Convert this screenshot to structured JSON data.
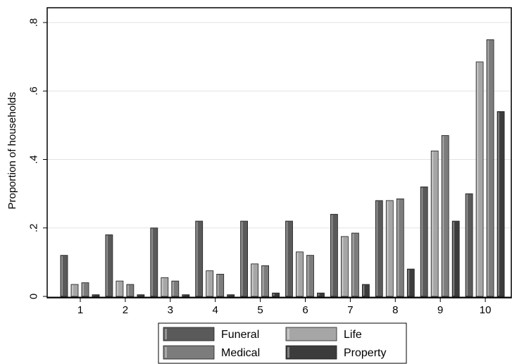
{
  "chart_data": {
    "type": "bar",
    "title": "",
    "xlabel": "",
    "ylabel": "Proportion of households",
    "categories": [
      "1",
      "2",
      "3",
      "4",
      "5",
      "6",
      "7",
      "8",
      "9",
      "10"
    ],
    "ylim": [
      0,
      0.8
    ],
    "yticks": [
      {
        "value": 0,
        "label": "0"
      },
      {
        "value": 0.2,
        "label": ".2"
      },
      {
        "value": 0.4,
        "label": ".4"
      },
      {
        "value": 0.6,
        "label": ".6"
      },
      {
        "value": 0.8,
        "label": ".8"
      }
    ],
    "grid": true,
    "legend_position": "bottom",
    "series": [
      {
        "name": "Funeral",
        "color": "#5a5a5a",
        "values": [
          0.12,
          0.18,
          0.2,
          0.22,
          0.22,
          0.22,
          0.24,
          0.28,
          0.32,
          0.3
        ]
      },
      {
        "name": "Life",
        "color": "#a6a6a6",
        "values": [
          0.035,
          0.045,
          0.055,
          0.075,
          0.095,
          0.13,
          0.175,
          0.28,
          0.425,
          0.685
        ]
      },
      {
        "name": "Medical",
        "color": "#7c7c7c",
        "values": [
          0.04,
          0.035,
          0.045,
          0.065,
          0.09,
          0.12,
          0.185,
          0.285,
          0.47,
          0.75
        ]
      },
      {
        "name": "Property",
        "color": "#3c3c3c",
        "values": [
          0.005,
          0.005,
          0.005,
          0.005,
          0.01,
          0.01,
          0.035,
          0.08,
          0.22,
          0.54
        ]
      }
    ]
  }
}
